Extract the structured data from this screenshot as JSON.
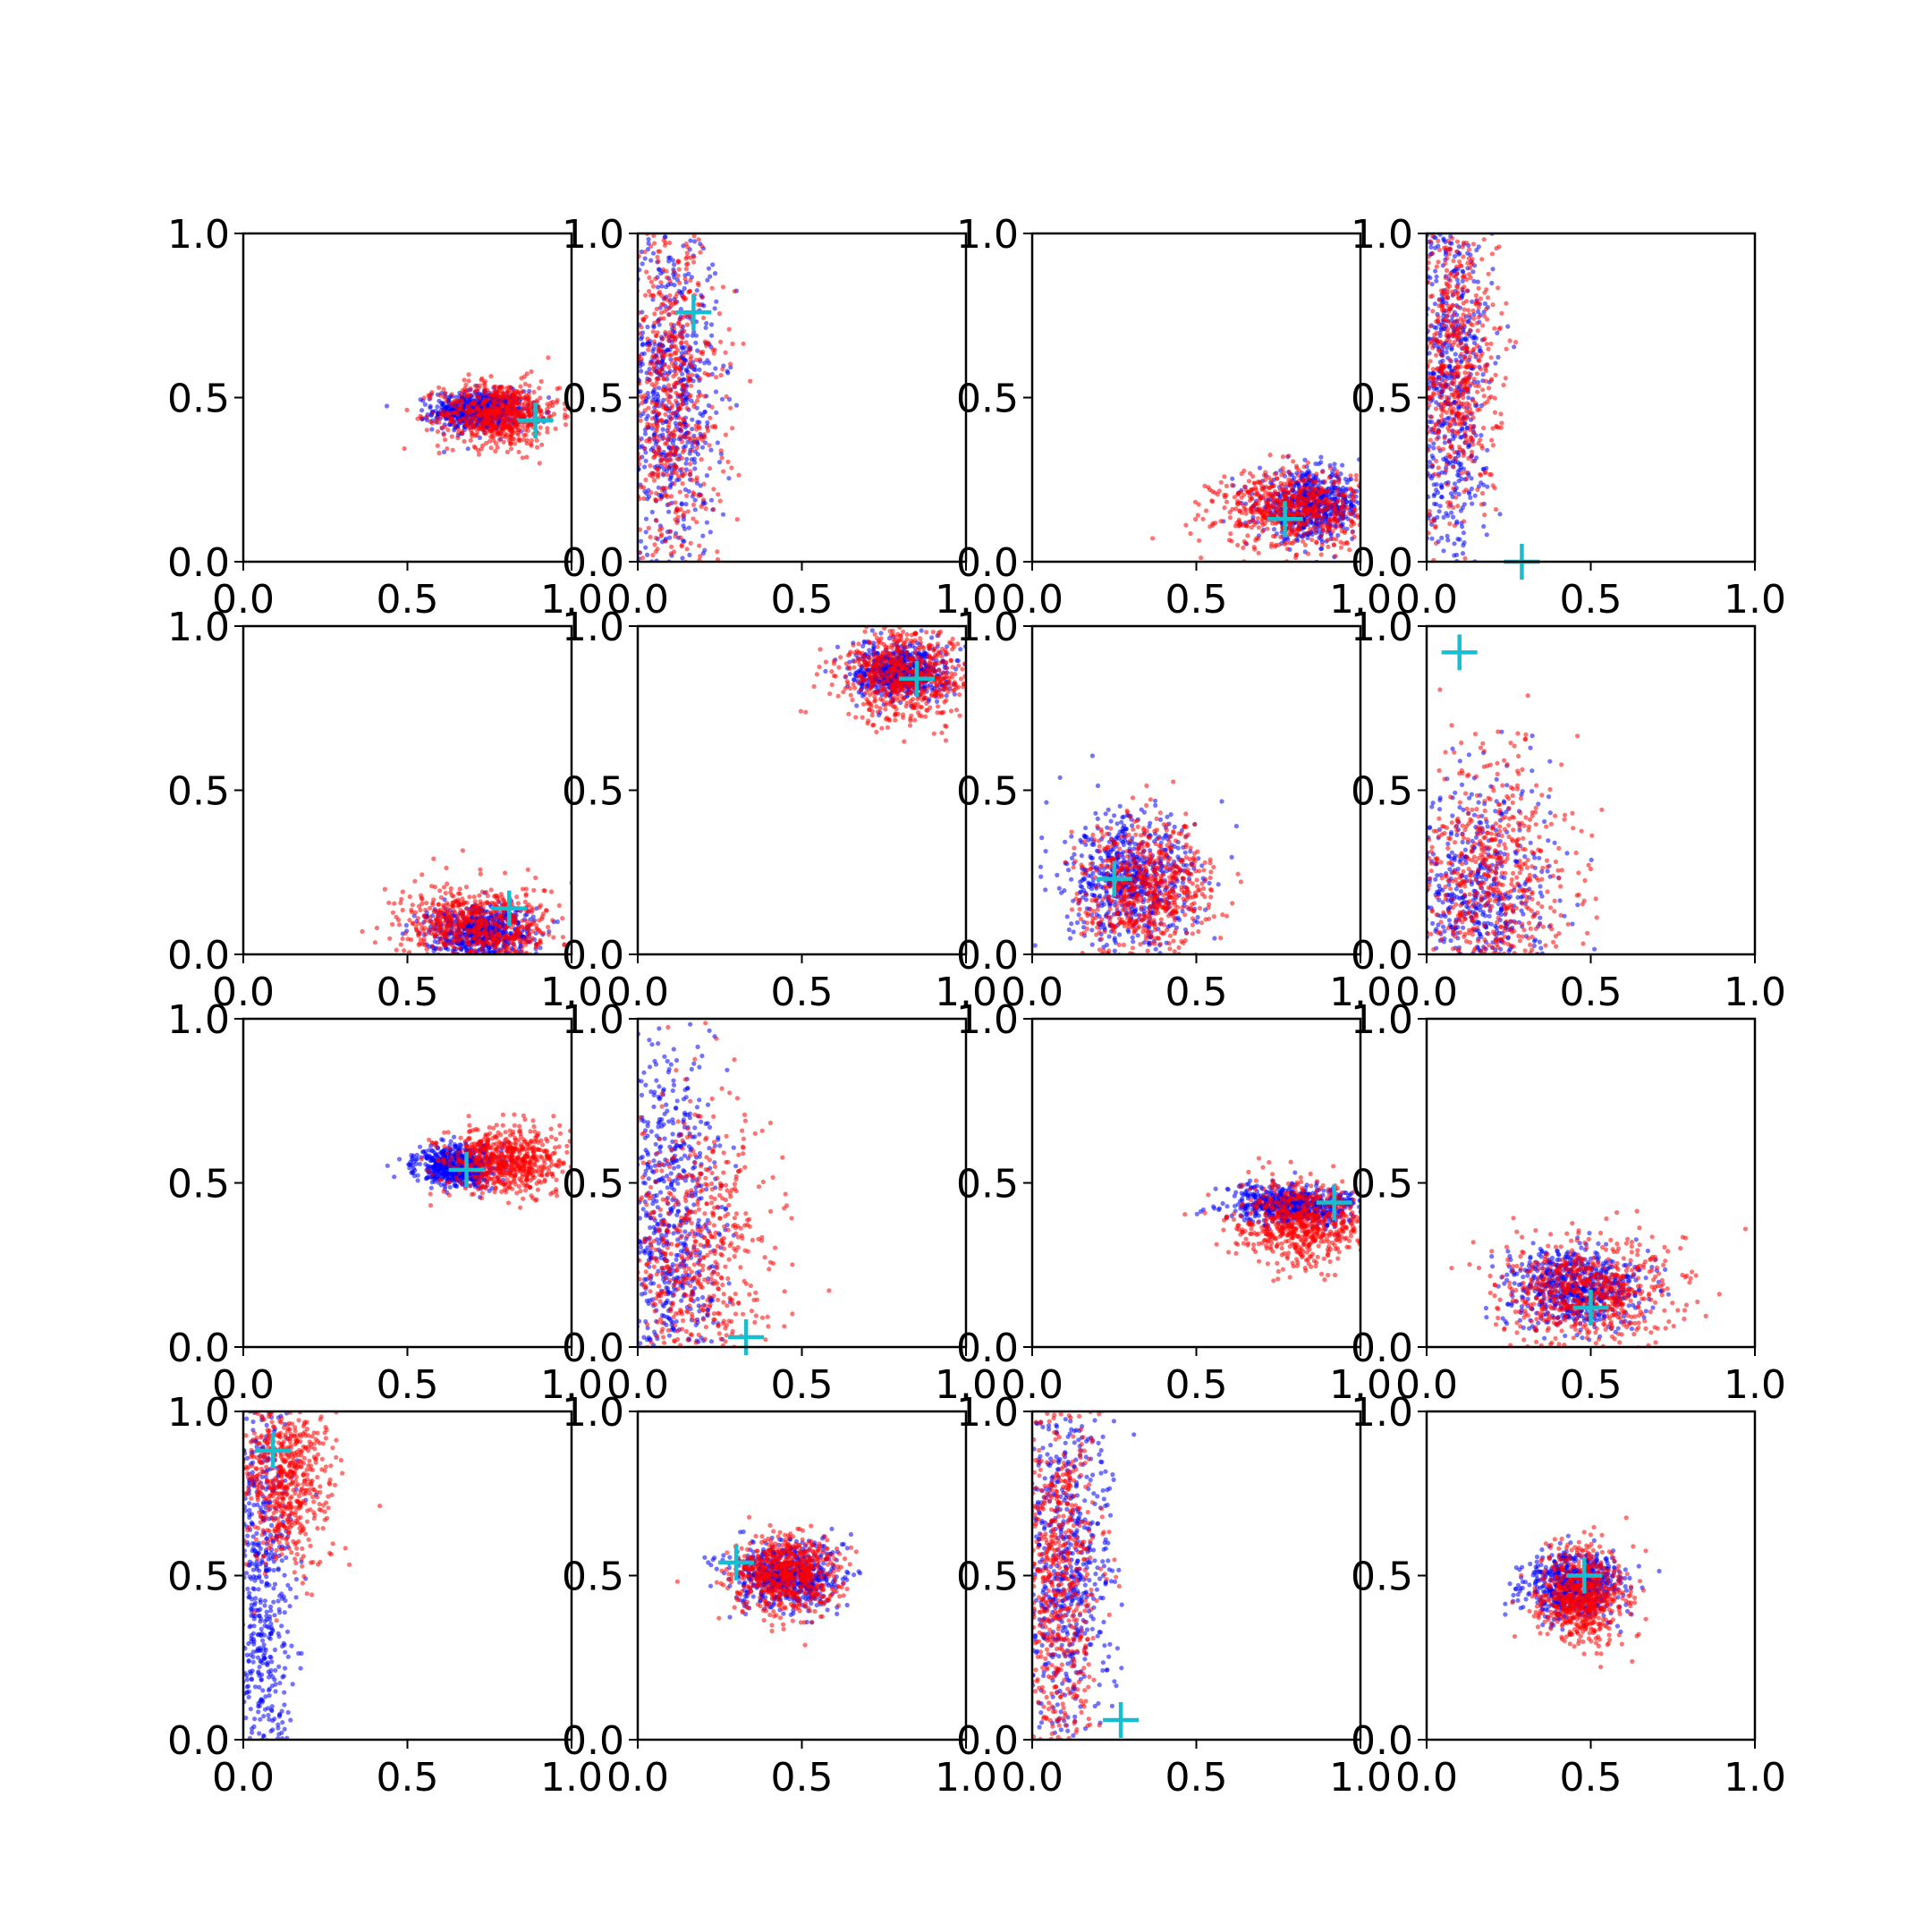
{
  "colors": {
    "series_a": "#0000ff",
    "series_b": "#ff0000",
    "marker": "#17becf",
    "axes": "#000000"
  },
  "chart_data": {
    "type": "scatter",
    "layout": "4x4 grid of scatter subplots",
    "xlim": [
      0,
      1
    ],
    "ylim": [
      0,
      1
    ],
    "xticks": [
      "0.0",
      "0.5",
      "1.0"
    ],
    "yticks": [
      "0.0",
      "0.5",
      "1.0"
    ],
    "marker_style": "plus",
    "series_colors": [
      "blue",
      "red"
    ],
    "panels": [
      {
        "blue": {
          "cx": 0.72,
          "cy": 0.46,
          "sx": 0.07,
          "sy": 0.03
        },
        "red": {
          "cx": 0.78,
          "cy": 0.45,
          "sx": 0.09,
          "sy": 0.05
        },
        "marker": [
          0.89,
          0.43
        ]
      },
      {
        "blue": {
          "cx": 0.1,
          "cy": 0.5,
          "sx": 0.07,
          "sy": 0.28
        },
        "red": {
          "cx": 0.1,
          "cy": 0.5,
          "sx": 0.08,
          "sy": 0.28
        },
        "marker": [
          0.17,
          0.76
        ]
      },
      {
        "blue": {
          "cx": 0.85,
          "cy": 0.17,
          "sx": 0.08,
          "sy": 0.05
        },
        "red": {
          "cx": 0.8,
          "cy": 0.16,
          "sx": 0.12,
          "sy": 0.06
        },
        "marker": [
          0.77,
          0.13
        ]
      },
      {
        "blue": {
          "cx": 0.07,
          "cy": 0.55,
          "sx": 0.06,
          "sy": 0.3
        },
        "red": {
          "cx": 0.08,
          "cy": 0.6,
          "sx": 0.07,
          "sy": 0.25
        },
        "marker": [
          0.29,
          0.0
        ]
      },
      {
        "blue": {
          "cx": 0.72,
          "cy": 0.07,
          "sx": 0.08,
          "sy": 0.04
        },
        "red": {
          "cx": 0.72,
          "cy": 0.09,
          "sx": 0.12,
          "sy": 0.06
        },
        "marker": [
          0.81,
          0.14
        ]
      },
      {
        "blue": {
          "cx": 0.8,
          "cy": 0.86,
          "sx": 0.07,
          "sy": 0.04
        },
        "red": {
          "cx": 0.82,
          "cy": 0.85,
          "sx": 0.1,
          "sy": 0.07
        },
        "marker": [
          0.85,
          0.84
        ]
      },
      {
        "blue": {
          "cx": 0.3,
          "cy": 0.22,
          "sx": 0.1,
          "sy": 0.1
        },
        "red": {
          "cx": 0.35,
          "cy": 0.2,
          "sx": 0.1,
          "sy": 0.1
        },
        "marker": [
          0.25,
          0.23
        ]
      },
      {
        "blue": {
          "cx": 0.15,
          "cy": 0.15,
          "sx": 0.12,
          "sy": 0.2
        },
        "red": {
          "cx": 0.2,
          "cy": 0.22,
          "sx": 0.12,
          "sy": 0.2
        },
        "marker": [
          0.1,
          0.92
        ]
      },
      {
        "blue": {
          "cx": 0.65,
          "cy": 0.55,
          "sx": 0.06,
          "sy": 0.03
        },
        "red": {
          "cx": 0.8,
          "cy": 0.57,
          "sx": 0.09,
          "sy": 0.05
        },
        "marker": [
          0.68,
          0.54
        ]
      },
      {
        "blue": {
          "cx": 0.1,
          "cy": 0.35,
          "sx": 0.08,
          "sy": 0.3
        },
        "red": {
          "cx": 0.18,
          "cy": 0.25,
          "sx": 0.12,
          "sy": 0.25
        },
        "marker": [
          0.33,
          0.03
        ]
      },
      {
        "blue": {
          "cx": 0.8,
          "cy": 0.43,
          "sx": 0.1,
          "sy": 0.03
        },
        "red": {
          "cx": 0.82,
          "cy": 0.38,
          "sx": 0.1,
          "sy": 0.06
        },
        "marker": [
          0.92,
          0.44
        ]
      },
      {
        "blue": {
          "cx": 0.45,
          "cy": 0.18,
          "sx": 0.1,
          "sy": 0.06
        },
        "red": {
          "cx": 0.5,
          "cy": 0.17,
          "sx": 0.14,
          "sy": 0.08
        },
        "marker": [
          0.5,
          0.12
        ]
      },
      {
        "blue": {
          "cx": 0.05,
          "cy": 0.45,
          "sx": 0.05,
          "sy": 0.35
        },
        "red": {
          "cx": 0.12,
          "cy": 0.8,
          "sx": 0.07,
          "sy": 0.14
        },
        "marker": [
          0.09,
          0.88
        ]
      },
      {
        "blue": {
          "cx": 0.45,
          "cy": 0.5,
          "sx": 0.08,
          "sy": 0.05
        },
        "red": {
          "cx": 0.45,
          "cy": 0.5,
          "sx": 0.08,
          "sy": 0.06
        },
        "marker": [
          0.3,
          0.54
        ]
      },
      {
        "blue": {
          "cx": 0.1,
          "cy": 0.5,
          "sx": 0.07,
          "sy": 0.3
        },
        "red": {
          "cx": 0.08,
          "cy": 0.5,
          "sx": 0.06,
          "sy": 0.3
        },
        "marker": [
          0.27,
          0.06
        ]
      },
      {
        "blue": {
          "cx": 0.45,
          "cy": 0.47,
          "sx": 0.07,
          "sy": 0.05
        },
        "red": {
          "cx": 0.47,
          "cy": 0.44,
          "sx": 0.07,
          "sy": 0.07
        },
        "marker": [
          0.48,
          0.5
        ]
      }
    ]
  }
}
